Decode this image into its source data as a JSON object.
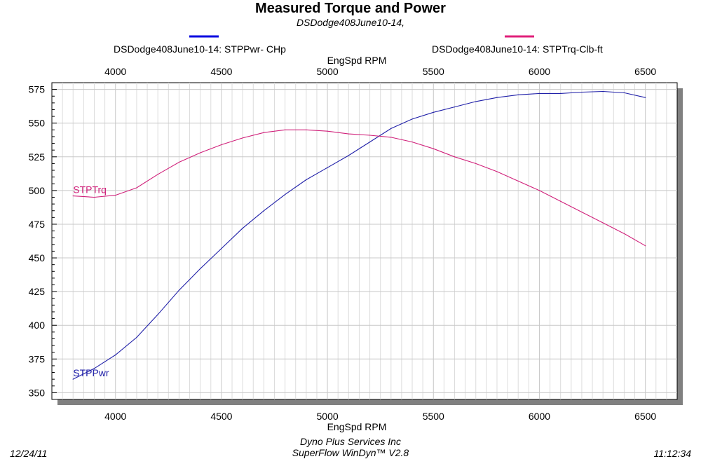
{
  "chart_data": {
    "type": "line",
    "title": "Measured Torque and Power",
    "subtitle": "DSDodge408June10-14,",
    "xlabel_top": "EngSpd  RPM",
    "xlabel_bottom": "EngSpd  RPM",
    "xlim": [
      3700,
      6650
    ],
    "ylim": [
      345,
      580
    ],
    "x_ticks": [
      4000,
      4500,
      5000,
      5500,
      6000,
      6500
    ],
    "y_ticks": [
      350,
      375,
      400,
      425,
      450,
      475,
      500,
      525,
      550,
      575
    ],
    "grid": true,
    "legend_position": "top",
    "series": [
      {
        "name": "DSDodge408June10-14: STPPwr- CHp",
        "label": "STPPwr",
        "color": "#1f1fa8",
        "legend_color": "#0000e0",
        "x": [
          3800,
          3900,
          4000,
          4100,
          4200,
          4300,
          4400,
          4500,
          4600,
          4700,
          4800,
          4900,
          5000,
          5100,
          5200,
          5300,
          5400,
          5500,
          5600,
          5700,
          5800,
          5900,
          6000,
          6100,
          6200,
          6300,
          6400,
          6500
        ],
        "values": [
          360,
          368,
          378,
          391,
          408,
          426,
          442,
          457,
          472,
          485,
          497,
          508,
          517,
          526,
          536,
          546,
          553,
          558,
          562,
          566,
          569,
          571,
          572,
          572,
          573,
          573.5,
          572.5,
          569
        ]
      },
      {
        "name": "DSDodge408June10-14: STPTrq-Clb-ft",
        "label": "STPTrq",
        "color": "#d0207a",
        "legend_color": "#e0207a",
        "x": [
          3800,
          3900,
          4000,
          4100,
          4200,
          4300,
          4400,
          4500,
          4600,
          4700,
          4800,
          4900,
          5000,
          5100,
          5200,
          5300,
          5400,
          5500,
          5600,
          5700,
          5800,
          5900,
          6000,
          6100,
          6200,
          6300,
          6400,
          6500
        ],
        "values": [
          496,
          495,
          496.5,
          502,
          512,
          521,
          528,
          534,
          539,
          543,
          545,
          545,
          544,
          542,
          541,
          539.5,
          536,
          531,
          525,
          520,
          514,
          507,
          500,
          492,
          484,
          476,
          468,
          459
        ]
      }
    ]
  },
  "footer": {
    "date": "12/24/11",
    "time": "11:12:34",
    "line1": "Dyno Plus Services Inc",
    "line2": "SuperFlow WinDyn™ V2.8"
  }
}
